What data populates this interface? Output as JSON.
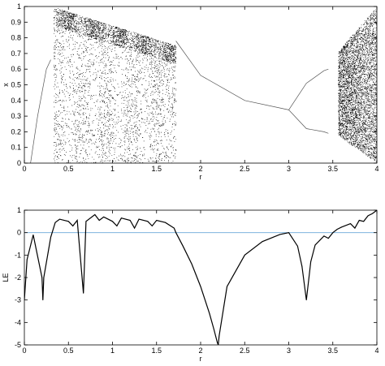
{
  "chart_data": [
    {
      "type": "scatter",
      "title": "",
      "xlabel": "r",
      "ylabel": "x",
      "xlim": [
        0,
        4
      ],
      "ylim": [
        0,
        1
      ],
      "xticks": [
        "0",
        "0.5",
        "1",
        "1.5",
        "2",
        "2.5",
        "3",
        "3.5",
        "4"
      ],
      "yticks": [
        "0",
        "0.1",
        "0.2",
        "0.3",
        "0.4",
        "0.5",
        "0.6",
        "0.7",
        "0.8",
        "0.9",
        "1"
      ],
      "grid": false,
      "description_points": {
        "fixed_point_branch": [
          [
            1.72,
            0.78
          ],
          [
            2.0,
            0.56
          ],
          [
            2.5,
            0.4
          ],
          [
            3.0,
            0.34
          ]
        ],
        "period2_upper": [
          [
            3.0,
            0.34
          ],
          [
            3.2,
            0.51
          ],
          [
            3.4,
            0.59
          ],
          [
            3.45,
            0.6
          ]
        ],
        "period2_lower": [
          [
            3.0,
            0.34
          ],
          [
            3.2,
            0.22
          ],
          [
            3.4,
            0.2
          ],
          [
            3.45,
            0.19
          ]
        ],
        "left_curve": [
          [
            0.07,
            0.0
          ],
          [
            0.15,
            0.3
          ],
          [
            0.25,
            0.6
          ],
          [
            0.3,
            0.66
          ]
        ],
        "chaotic_envelope_top": [
          [
            0.3,
            1.0
          ],
          [
            1.72,
            0.75
          ],
          [
            3.45,
            0.64
          ],
          [
            4.0,
            1.0
          ]
        ],
        "chaotic_envelope_bottom": [
          [
            0.35,
            0.0
          ],
          [
            1.72,
            0.0
          ],
          [
            3.55,
            0.18
          ],
          [
            4.0,
            0.0
          ]
        ]
      },
      "color": "#000000"
    },
    {
      "type": "line",
      "title": "",
      "xlabel": "r",
      "ylabel": "LE",
      "xlim": [
        0,
        4
      ],
      "ylim": [
        -5,
        1
      ],
      "xticks": [
        "0",
        "0.5",
        "1",
        "1.5",
        "2",
        "2.5",
        "3",
        "3.5",
        "4"
      ],
      "yticks": [
        "-5",
        "-4",
        "-3",
        "-2",
        "-1",
        "0",
        "1"
      ],
      "grid": false,
      "zero_line_color": "#6aa8d8",
      "series": [
        {
          "x": [
            0.0,
            0.03,
            0.1,
            0.2,
            0.21,
            0.22,
            0.3,
            0.35,
            0.4,
            0.5,
            0.55,
            0.6,
            0.67,
            0.7,
            0.8,
            0.85,
            0.9,
            1.0,
            1.05,
            1.1,
            1.2,
            1.25,
            1.3,
            1.4,
            1.45,
            1.5,
            1.6,
            1.7,
            1.72,
            1.8,
            1.9,
            2.0,
            2.1,
            2.15,
            2.19,
            2.2,
            2.21,
            2.3,
            2.5,
            2.7,
            2.9,
            3.0,
            3.1,
            3.15,
            3.2,
            3.25,
            3.3,
            3.4,
            3.45,
            3.5,
            3.55,
            3.6,
            3.7,
            3.75,
            3.8,
            3.85,
            3.9,
            3.95,
            4.0
          ],
          "y": [
            -3.0,
            -1.2,
            -0.1,
            -2.0,
            -3.0,
            -2.0,
            -0.2,
            0.45,
            0.6,
            0.5,
            0.3,
            0.55,
            -2.7,
            0.5,
            0.8,
            0.55,
            0.7,
            0.5,
            0.3,
            0.65,
            0.55,
            0.2,
            0.6,
            0.5,
            0.3,
            0.55,
            0.45,
            0.2,
            0.0,
            -0.6,
            -1.4,
            -2.4,
            -3.6,
            -4.3,
            -4.9,
            -5.0,
            -4.6,
            -2.4,
            -1.0,
            -0.4,
            -0.08,
            0.0,
            -0.6,
            -1.5,
            -3.0,
            -1.3,
            -0.55,
            -0.15,
            -0.25,
            0.0,
            0.15,
            0.25,
            0.4,
            0.2,
            0.55,
            0.5,
            0.75,
            0.85,
            1.0
          ]
        }
      ],
      "color": "#000000"
    }
  ]
}
